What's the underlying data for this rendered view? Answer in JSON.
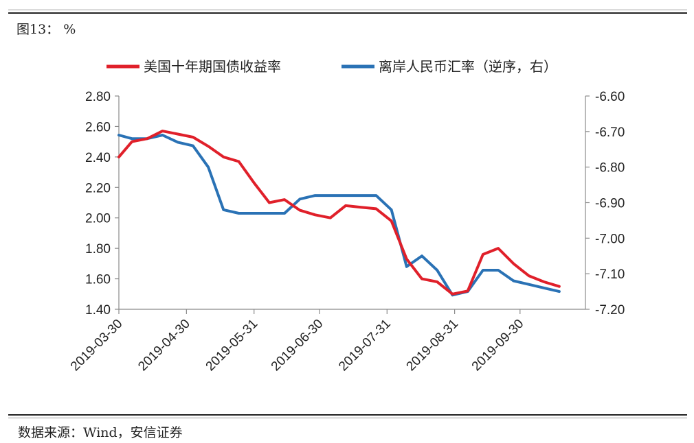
{
  "figure": {
    "title": "图13： %",
    "source": "数据来源：Wind，安信证券"
  },
  "chart_data": {
    "type": "line",
    "x_ticks": [
      "2019-03-30",
      "2019-04-30",
      "2019-05-31",
      "2019-06-30",
      "2019-07-31",
      "2019-08-31",
      "2019-09-30"
    ],
    "xlim": [
      "2019-03-30",
      "2019-10-30"
    ],
    "y_left": {
      "ylim": [
        1.4,
        2.8
      ],
      "ticks": [
        "2.80",
        "2.60",
        "2.40",
        "2.20",
        "2.00",
        "1.80",
        "1.60",
        "1.40"
      ]
    },
    "y_right": {
      "ylim": [
        -6.6,
        -7.2
      ],
      "inverted": true,
      "ticks": [
        "-6.60",
        "-6.70",
        "-6.80",
        "-6.90",
        "-7.00",
        "-7.10",
        "-7.20"
      ]
    },
    "legend_position": "top",
    "grid": false,
    "series": [
      {
        "name": "美国十年期国债收益率",
        "axis": "left",
        "color": "#e0202a",
        "points": [
          [
            "2019-03-30",
            2.4
          ],
          [
            "2019-04-05",
            2.5
          ],
          [
            "2019-04-12",
            2.52
          ],
          [
            "2019-04-19",
            2.57
          ],
          [
            "2019-04-26",
            2.55
          ],
          [
            "2019-05-03",
            2.53
          ],
          [
            "2019-05-10",
            2.47
          ],
          [
            "2019-05-17",
            2.4
          ],
          [
            "2019-05-24",
            2.37
          ],
          [
            "2019-05-31",
            2.23
          ],
          [
            "2019-06-07",
            2.1
          ],
          [
            "2019-06-14",
            2.12
          ],
          [
            "2019-06-21",
            2.05
          ],
          [
            "2019-06-28",
            2.02
          ],
          [
            "2019-07-05",
            2.0
          ],
          [
            "2019-07-12",
            2.08
          ],
          [
            "2019-07-19",
            2.07
          ],
          [
            "2019-07-26",
            2.06
          ],
          [
            "2019-08-02",
            1.98
          ],
          [
            "2019-08-09",
            1.73
          ],
          [
            "2019-08-16",
            1.6
          ],
          [
            "2019-08-23",
            1.58
          ],
          [
            "2019-08-30",
            1.5
          ],
          [
            "2019-09-06",
            1.52
          ],
          [
            "2019-09-13",
            1.76
          ],
          [
            "2019-09-20",
            1.8
          ],
          [
            "2019-09-27",
            1.7
          ],
          [
            "2019-10-04",
            1.62
          ],
          [
            "2019-10-11",
            1.58
          ],
          [
            "2019-10-18",
            1.55
          ]
        ]
      },
      {
        "name": "离岸人民币汇率（逆序，右）",
        "axis": "right",
        "color": "#2a72b5",
        "points": [
          [
            "2019-03-30",
            -6.71
          ],
          [
            "2019-04-05",
            -6.72
          ],
          [
            "2019-04-12",
            -6.72
          ],
          [
            "2019-04-19",
            -6.71
          ],
          [
            "2019-04-26",
            -6.73
          ],
          [
            "2019-05-03",
            -6.74
          ],
          [
            "2019-05-10",
            -6.8
          ],
          [
            "2019-05-17",
            -6.92
          ],
          [
            "2019-05-24",
            -6.93
          ],
          [
            "2019-05-31",
            -6.93
          ],
          [
            "2019-06-07",
            -6.93
          ],
          [
            "2019-06-14",
            -6.93
          ],
          [
            "2019-06-21",
            -6.89
          ],
          [
            "2019-06-28",
            -6.88
          ],
          [
            "2019-07-05",
            -6.88
          ],
          [
            "2019-07-12",
            -6.88
          ],
          [
            "2019-07-19",
            -6.88
          ],
          [
            "2019-07-26",
            -6.88
          ],
          [
            "2019-08-02",
            -6.92
          ],
          [
            "2019-08-09",
            -7.08
          ],
          [
            "2019-08-16",
            -7.05
          ],
          [
            "2019-08-23",
            -7.09
          ],
          [
            "2019-08-30",
            -7.16
          ],
          [
            "2019-09-06",
            -7.15
          ],
          [
            "2019-09-13",
            -7.09
          ],
          [
            "2019-09-20",
            -7.09
          ],
          [
            "2019-09-27",
            -7.12
          ],
          [
            "2019-10-04",
            -7.13
          ],
          [
            "2019-10-11",
            -7.14
          ],
          [
            "2019-10-18",
            -7.15
          ]
        ]
      }
    ]
  }
}
